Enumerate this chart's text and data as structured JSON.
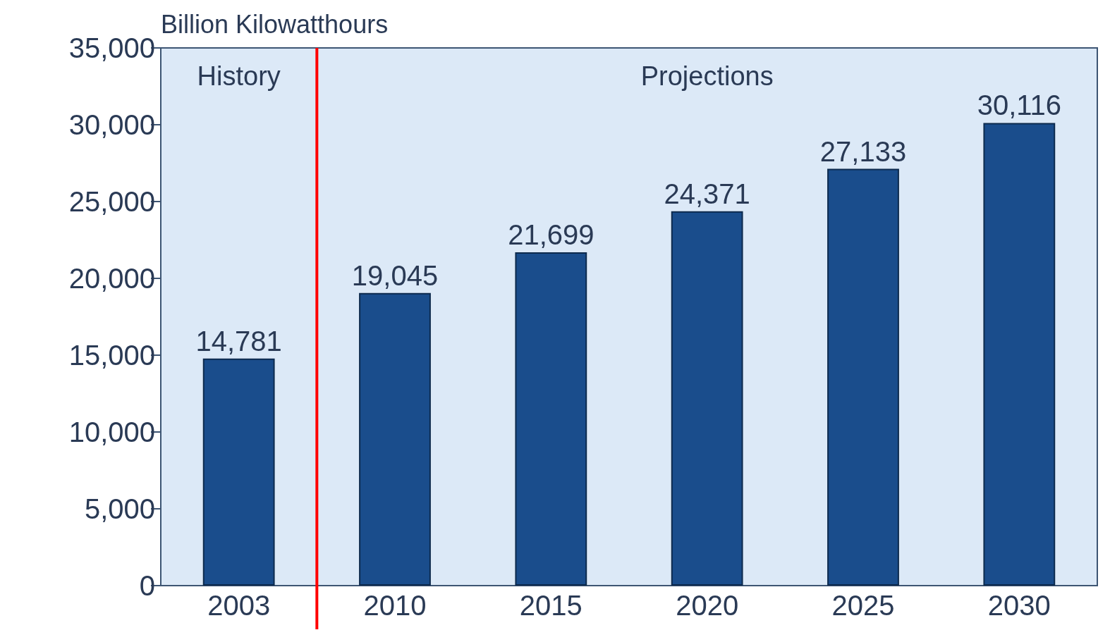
{
  "chart_data": {
    "type": "bar",
    "ylabel": "Billion Kilowatthours",
    "categories": [
      "2003",
      "2010",
      "2015",
      "2020",
      "2025",
      "2030"
    ],
    "values": [
      14781,
      19045,
      21699,
      24371,
      27133,
      30116
    ],
    "value_labels": [
      "14,781",
      "19,045",
      "21,699",
      "24,371",
      "27,133",
      "30,116"
    ],
    "color": "#1a4d8c",
    "grid": false,
    "ylim": [
      0,
      35000
    ],
    "yticks": [
      {
        "value": 0,
        "label": "0"
      },
      {
        "value": 5000,
        "label": "5,000"
      },
      {
        "value": 10000,
        "label": "10,000"
      },
      {
        "value": 15000,
        "label": "15,000"
      },
      {
        "value": 20000,
        "label": "20,000"
      },
      {
        "value": 25000,
        "label": "25,000"
      },
      {
        "value": 30000,
        "label": "30,000"
      },
      {
        "value": 35000,
        "label": "35,000"
      }
    ],
    "ref_lines": [
      {
        "axis": "x",
        "value": "2010",
        "color": "#ff0000"
      }
    ],
    "annotations": [
      "History",
      "Projections"
    ]
  }
}
